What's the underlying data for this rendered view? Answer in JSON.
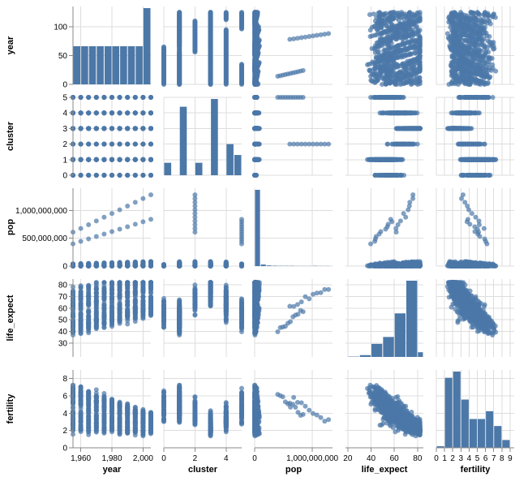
{
  "chart_data": {
    "type": "scatter-matrix",
    "variables": [
      "year",
      "cluster",
      "pop",
      "life_expect",
      "fertility"
    ],
    "colors": {
      "mark": "#4c78a8",
      "grid": "#dddddd",
      "domain": "#888888"
    },
    "grid": true,
    "axes": {
      "year": {
        "label": "year",
        "domain": [
          1955,
          2005
        ],
        "ticks": [
          1960,
          1980,
          2000
        ],
        "tick_labels": [
          "1,960",
          "1,980",
          "2,000"
        ]
      },
      "cluster": {
        "label": "cluster",
        "domain": [
          0,
          5
        ],
        "ticks": [
          0,
          2,
          4
        ],
        "tick_labels": [
          "0",
          "2",
          "4"
        ]
      },
      "pop": {
        "label": "pop",
        "domain": [
          0,
          1350000000
        ],
        "ticks": [
          0,
          1000000000
        ],
        "tick_labels": [
          "0",
          "1,000,000,000"
        ]
      },
      "life_expect": {
        "label": "life_expect",
        "domain": [
          18,
          85
        ],
        "ticks": [
          20,
          40,
          60,
          80
        ],
        "tick_labels": [
          "20",
          "40",
          "60",
          "80"
        ]
      },
      "fertility": {
        "label": "fertility",
        "domain": [
          0,
          9.5
        ],
        "ticks": [
          0,
          1,
          2,
          3,
          4,
          5,
          6,
          7,
          8,
          9
        ],
        "tick_labels": [
          "0",
          "1",
          "2",
          "3",
          "4",
          "5",
          "6",
          "7",
          "8",
          "9"
        ]
      }
    },
    "row_axes": {
      "year": {
        "label": "year",
        "domain": [
          0,
          135
        ],
        "ticks": [
          0,
          50,
          100
        ],
        "tick_labels": [
          "0",
          "50",
          "100"
        ]
      },
      "cluster": {
        "label": "cluster",
        "domain": [
          0,
          5
        ],
        "ticks": [
          0,
          1,
          2,
          3,
          4,
          5
        ],
        "tick_labels": [
          "0",
          "1",
          "2",
          "3",
          "4",
          "5"
        ]
      },
      "pop": {
        "label": "pop",
        "domain": [
          0,
          1400000000
        ],
        "ticks": [
          0,
          500000000,
          1000000000
        ],
        "tick_labels": [
          "0",
          "500,000,000",
          "1,000,000,000"
        ]
      },
      "life_expect": {
        "label": "life_expect",
        "domain": [
          18,
          85
        ],
        "ticks": [
          30,
          40,
          50,
          60,
          70,
          80
        ],
        "tick_labels": [
          "30",
          "40",
          "50",
          "60",
          "70",
          "80"
        ]
      },
      "fertility": {
        "label": "fertility",
        "domain": [
          0,
          9
        ],
        "ticks": [
          0,
          2,
          4,
          6,
          8
        ],
        "tick_labels": [
          "0",
          "2",
          "4",
          "6",
          "8"
        ]
      }
    },
    "histograms": {
      "year": {
        "bins": [
          [
            1955,
            1960
          ],
          [
            1960,
            1965
          ],
          [
            1965,
            1970
          ],
          [
            1970,
            1975
          ],
          [
            1975,
            1980
          ],
          [
            1980,
            1985
          ],
          [
            1985,
            1990
          ],
          [
            1990,
            1995
          ],
          [
            1995,
            2000
          ],
          [
            2000,
            2005
          ]
        ],
        "counts": [
          63,
          63,
          63,
          63,
          63,
          63,
          63,
          63,
          63,
          126
        ]
      },
      "cluster": {
        "bins": [
          [
            0,
            0.5
          ],
          [
            0.5,
            1
          ],
          [
            1,
            1.5
          ],
          [
            1.5,
            2
          ],
          [
            2,
            2.5
          ],
          [
            2.5,
            3
          ],
          [
            3,
            3.5
          ],
          [
            3.5,
            4
          ],
          [
            4,
            4.5
          ],
          [
            4.5,
            5
          ]
        ],
        "counts": [
          0.8,
          0,
          4.4,
          0,
          0.8,
          0,
          4.9,
          0,
          2.0,
          1.3
        ]
      },
      "pop": {
        "bins": [
          [
            0,
            100000000
          ],
          [
            100000000,
            200000000
          ],
          [
            200000000,
            300000000
          ],
          [
            300000000,
            400000000
          ],
          [
            400000000,
            500000000
          ],
          [
            500000000,
            600000000
          ],
          [
            600000000,
            700000000
          ],
          [
            700000000,
            800000000
          ],
          [
            800000000,
            900000000
          ],
          [
            900000000,
            1000000000
          ],
          [
            1000000000,
            1100000000
          ],
          [
            1100000000,
            1200000000
          ],
          [
            1200000000,
            1300000000
          ]
        ],
        "counts": [
          580,
          12,
          5,
          3,
          2,
          2,
          2,
          1,
          1,
          1,
          2,
          1,
          1
        ]
      },
      "life_expect": {
        "bins": [
          [
            20,
            30
          ],
          [
            30,
            40
          ],
          [
            40,
            50
          ],
          [
            50,
            60
          ],
          [
            60,
            70
          ],
          [
            70,
            80
          ],
          [
            80,
            85
          ]
        ],
        "counts": [
          1,
          5,
          36,
          55,
          120,
          210,
          13
        ]
      },
      "fertility": {
        "bins": [
          [
            0,
            1
          ],
          [
            1,
            2
          ],
          [
            2,
            3
          ],
          [
            3,
            4
          ],
          [
            4,
            5
          ],
          [
            5,
            6
          ],
          [
            6,
            7
          ],
          [
            7,
            8
          ],
          [
            8,
            9
          ],
          [
            9,
            10
          ]
        ],
        "counts": [
          2,
          90,
          98,
          62,
          37,
          37,
          47,
          28,
          10,
          0
        ]
      }
    }
  }
}
